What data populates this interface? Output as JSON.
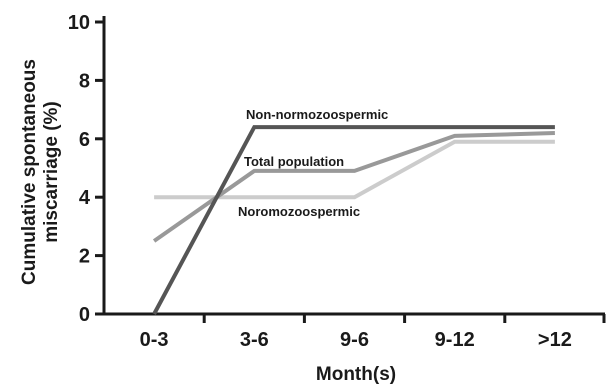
{
  "chart_data": {
    "type": "line",
    "categories": [
      "0-3",
      "3-6",
      "9-6",
      "9-12",
      ">12"
    ],
    "xlabel": "Month(s)",
    "ylabel_lines": [
      "Cumulative spontaneous",
      "miscarriage (%)"
    ],
    "ylim": [
      0,
      10
    ],
    "yticks": [
      "0",
      "2",
      "4",
      "6",
      "8",
      "10"
    ],
    "grid": false,
    "legend": "inline labels",
    "series": [
      {
        "name": "Non-normozoospermic",
        "values": [
          0,
          6.4,
          6.4,
          6.4,
          6.4
        ],
        "color": "#555555"
      },
      {
        "name": "Total population",
        "values": [
          2.5,
          4.9,
          4.9,
          6.1,
          6.2
        ],
        "color": "#999999"
      },
      {
        "name": "Noromozoospermic",
        "values": [
          4.0,
          4.0,
          4.0,
          5.9,
          5.9
        ],
        "color": "#cccccc"
      }
    ]
  }
}
